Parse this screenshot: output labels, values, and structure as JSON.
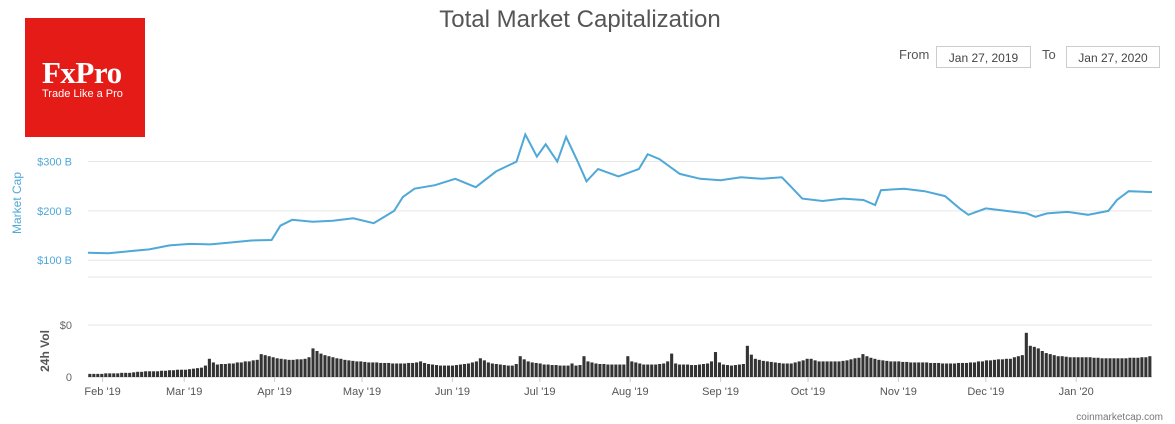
{
  "brand": {
    "name": "FxPro",
    "tagline": "Trade Like a Pro"
  },
  "title": "Total Market Capitalization",
  "range": {
    "from_label": "From",
    "from_value": "Jan 27, 2019",
    "to_label": "To",
    "to_value": "Jan 27, 2020"
  },
  "credit": "coinmarketcap.com",
  "colors": {
    "line": "#4fa8d8",
    "volume": "#333333",
    "axis_label": "#4fa8d8"
  },
  "chart_data": [
    {
      "type": "line",
      "ylabel": "Market Cap",
      "ytick_labels": [
        "$100 B",
        "$200 B",
        "$300 B"
      ],
      "ytick_values": [
        100,
        200,
        300
      ],
      "ylim": [
        66,
        366
      ],
      "unit": "billion USD",
      "x": [
        "2019-01-27",
        "2019-02-03",
        "2019-02-10",
        "2019-02-17",
        "2019-02-24",
        "2019-03-03",
        "2019-03-10",
        "2019-03-17",
        "2019-03-24",
        "2019-03-31",
        "2019-04-03",
        "2019-04-07",
        "2019-04-14",
        "2019-04-21",
        "2019-04-28",
        "2019-05-05",
        "2019-05-12",
        "2019-05-15",
        "2019-05-19",
        "2019-05-26",
        "2019-06-02",
        "2019-06-09",
        "2019-06-16",
        "2019-06-23",
        "2019-06-26",
        "2019-06-30",
        "2019-07-03",
        "2019-07-07",
        "2019-07-10",
        "2019-07-14",
        "2019-07-17",
        "2019-07-21",
        "2019-07-28",
        "2019-08-04",
        "2019-08-07",
        "2019-08-11",
        "2019-08-18",
        "2019-08-25",
        "2019-09-01",
        "2019-09-08",
        "2019-09-15",
        "2019-09-22",
        "2019-09-25",
        "2019-09-29",
        "2019-10-06",
        "2019-10-13",
        "2019-10-20",
        "2019-10-24",
        "2019-10-26",
        "2019-11-03",
        "2019-11-10",
        "2019-11-17",
        "2019-11-22",
        "2019-11-25",
        "2019-12-01",
        "2019-12-08",
        "2019-12-15",
        "2019-12-18",
        "2019-12-22",
        "2019-12-29",
        "2020-01-05",
        "2020-01-12",
        "2020-01-15",
        "2020-01-19",
        "2020-01-27"
      ],
      "y": [
        115,
        114,
        118,
        122,
        130,
        133,
        132,
        136,
        140,
        141,
        170,
        182,
        178,
        180,
        185,
        175,
        200,
        228,
        245,
        252,
        265,
        248,
        280,
        300,
        355,
        310,
        335,
        300,
        350,
        300,
        260,
        285,
        270,
        285,
        315,
        305,
        275,
        265,
        262,
        268,
        265,
        268,
        250,
        225,
        220,
        225,
        222,
        212,
        242,
        245,
        240,
        230,
        205,
        192,
        205,
        200,
        195,
        188,
        195,
        198,
        192,
        200,
        222,
        240,
        238
      ]
    },
    {
      "type": "bar",
      "ylabel": "24h Vol",
      "ytick_labels": [
        "$0",
        "0"
      ],
      "x_start": "2019-01-27",
      "x_end": "2020-01-27",
      "values": [
        6,
        6,
        6,
        6,
        7,
        7,
        7,
        7,
        8,
        8,
        8,
        9,
        10,
        10,
        11,
        11,
        11,
        11,
        12,
        12,
        13,
        13,
        14,
        14,
        14,
        15,
        16,
        17,
        18,
        22,
        35,
        28,
        24,
        25,
        25,
        26,
        26,
        28,
        28,
        30,
        30,
        32,
        33,
        44,
        42,
        40,
        38,
        36,
        35,
        34,
        33,
        33,
        34,
        34,
        35,
        38,
        55,
        50,
        45,
        42,
        40,
        38,
        36,
        35,
        33,
        32,
        31,
        30,
        30,
        29,
        28,
        28,
        28,
        27,
        27,
        27,
        26,
        26,
        26,
        26,
        27,
        27,
        28,
        30,
        27,
        25,
        24,
        23,
        22,
        22,
        22,
        22,
        23,
        24,
        25,
        26,
        28,
        30,
        36,
        32,
        28,
        26,
        25,
        24,
        23,
        22,
        22,
        25,
        40,
        34,
        30,
        28,
        27,
        26,
        24,
        24,
        23,
        23,
        22,
        22,
        22,
        26,
        22,
        23,
        40,
        30,
        28,
        26,
        25,
        25,
        24,
        24,
        24,
        24,
        24,
        40,
        30,
        28,
        26,
        24,
        24,
        24,
        24,
        25,
        26,
        30,
        45,
        26,
        24,
        24,
        24,
        23,
        23,
        24,
        25,
        26,
        30,
        48,
        28,
        24,
        23,
        22,
        23,
        24,
        25,
        60,
        43,
        35,
        33,
        31,
        30,
        29,
        28,
        27,
        26,
        26,
        26,
        28,
        30,
        32,
        35,
        35,
        32,
        30,
        30,
        30,
        30,
        30,
        30,
        31,
        32,
        34,
        36,
        37,
        44,
        40,
        37,
        35,
        33,
        32,
        31,
        30,
        30,
        30,
        29,
        29,
        28,
        28,
        28,
        28,
        28,
        27,
        27,
        27,
        26,
        26,
        26,
        26,
        27,
        27,
        27,
        28,
        28,
        30,
        30,
        32,
        32,
        33,
        34,
        34,
        35,
        35,
        38,
        40,
        42,
        85,
        60,
        58,
        55,
        50,
        46,
        44,
        42,
        40,
        40,
        39,
        38,
        38,
        38,
        38,
        38,
        38,
        37,
        37,
        36,
        36,
        36,
        36,
        36,
        36,
        36,
        37,
        37,
        37,
        38,
        38,
        40
      ]
    }
  ],
  "xaxis": {
    "tick_labels": [
      "Feb '19",
      "Mar '19",
      "Apr '19",
      "May '19",
      "Jun '19",
      "Jul '19",
      "Aug '19",
      "Sep '19",
      "Oct '19",
      "Nov '19",
      "Dec '19",
      "Jan '20"
    ]
  }
}
